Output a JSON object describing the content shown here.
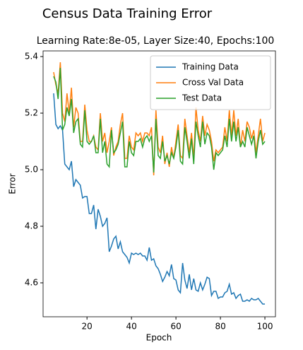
{
  "chart_data": {
    "type": "line",
    "title": "Census Data Training Error",
    "subtitle": "Learning Rate:8e-05, Layer Size:40, Epochs:100",
    "x_label": "Epoch",
    "y_label": "Error",
    "x": [
      5,
      6,
      7,
      8,
      9,
      10,
      11,
      12,
      13,
      14,
      15,
      16,
      17,
      18,
      19,
      20,
      21,
      22,
      23,
      24,
      25,
      26,
      27,
      28,
      29,
      30,
      31,
      32,
      33,
      34,
      35,
      36,
      37,
      38,
      39,
      40,
      41,
      42,
      43,
      44,
      45,
      46,
      47,
      48,
      49,
      50,
      51,
      52,
      53,
      54,
      55,
      56,
      57,
      58,
      59,
      60,
      61,
      62,
      63,
      64,
      65,
      66,
      67,
      68,
      69,
      70,
      71,
      72,
      73,
      74,
      75,
      76,
      77,
      78,
      79,
      80,
      81,
      82,
      83,
      84,
      85,
      86,
      87,
      88,
      89,
      90,
      91,
      92,
      93,
      94,
      95,
      96,
      97,
      98,
      99,
      100
    ],
    "series": [
      {
        "name": "Training Data",
        "color": "#1f77b4",
        "values": [
          5.27,
          5.16,
          5.145,
          5.155,
          5.14,
          5.02,
          5.01,
          5.0,
          5.03,
          4.94,
          4.965,
          4.955,
          4.945,
          4.9,
          4.905,
          4.905,
          4.845,
          4.845,
          4.875,
          4.79,
          4.86,
          4.835,
          4.8,
          4.81,
          4.83,
          4.71,
          4.73,
          4.755,
          4.765,
          4.72,
          4.745,
          4.71,
          4.7,
          4.69,
          4.67,
          4.705,
          4.7,
          4.705,
          4.7,
          4.705,
          4.695,
          4.695,
          4.68,
          4.725,
          4.68,
          4.685,
          4.66,
          4.65,
          4.63,
          4.605,
          4.62,
          4.64,
          4.625,
          4.665,
          4.615,
          4.61,
          4.575,
          4.565,
          4.67,
          4.61,
          4.58,
          4.63,
          4.575,
          4.615,
          4.575,
          4.57,
          4.6,
          4.575,
          4.595,
          4.62,
          4.615,
          4.555,
          4.57,
          4.57,
          4.545,
          4.55,
          4.55,
          4.565,
          4.57,
          4.595,
          4.56,
          4.565,
          4.545,
          4.555,
          4.56,
          4.535,
          4.535,
          4.54,
          4.535,
          4.545,
          4.54,
          4.54,
          4.545,
          4.535,
          4.525,
          4.525
        ]
      },
      {
        "name": "Cross Val Data",
        "color": "#ff7f0e",
        "values": [
          5.345,
          5.3,
          5.27,
          5.38,
          5.2,
          5.17,
          5.27,
          5.2,
          5.29,
          5.15,
          5.22,
          5.2,
          5.1,
          5.1,
          5.23,
          5.14,
          5.1,
          5.1,
          5.12,
          5.08,
          5.07,
          5.2,
          5.1,
          5.13,
          5.06,
          5.1,
          5.15,
          5.05,
          5.08,
          5.1,
          5.16,
          5.2,
          5.04,
          5.04,
          5.12,
          5.08,
          5.07,
          5.13,
          5.12,
          5.13,
          5.1,
          5.13,
          5.13,
          5.12,
          5.15,
          4.98,
          5.21,
          5.08,
          5.06,
          5.12,
          5.02,
          5.06,
          5.01,
          5.08,
          5.04,
          5.1,
          5.16,
          5.05,
          5.04,
          5.18,
          5.12,
          5.06,
          5.13,
          5.04,
          5.22,
          5.14,
          5.1,
          5.19,
          5.12,
          5.16,
          5.14,
          5.1,
          5.03,
          5.07,
          5.06,
          5.07,
          5.08,
          5.15,
          5.1,
          5.21,
          5.12,
          5.21,
          5.12,
          5.18,
          5.08,
          5.14,
          5.1,
          5.17,
          5.15,
          5.11,
          5.14,
          5.06,
          5.12,
          5.18,
          5.1,
          5.13
        ]
      },
      {
        "name": "Test Data",
        "color": "#2ca02c",
        "values": [
          5.33,
          5.31,
          5.25,
          5.36,
          5.14,
          5.16,
          5.22,
          5.19,
          5.25,
          5.13,
          5.17,
          5.18,
          5.09,
          5.08,
          5.21,
          5.1,
          5.09,
          5.1,
          5.12,
          5.06,
          5.06,
          5.18,
          5.06,
          5.1,
          5.02,
          5.01,
          5.14,
          5.06,
          5.07,
          5.09,
          5.13,
          5.17,
          5.01,
          5.01,
          5.1,
          5.06,
          5.05,
          5.1,
          5.1,
          5.11,
          5.08,
          5.11,
          5.12,
          5.1,
          5.12,
          4.99,
          5.18,
          5.05,
          5.04,
          5.1,
          5.03,
          5.05,
          5.02,
          5.06,
          5.04,
          5.08,
          5.14,
          5.03,
          5.02,
          5.15,
          5.1,
          5.04,
          5.11,
          5.02,
          5.17,
          5.12,
          5.08,
          5.17,
          5.09,
          5.13,
          5.12,
          5.08,
          5.0,
          5.06,
          5.05,
          5.06,
          5.07,
          5.12,
          5.08,
          5.18,
          5.1,
          5.17,
          5.1,
          5.15,
          5.08,
          5.1,
          5.08,
          5.15,
          5.12,
          5.09,
          5.12,
          5.04,
          5.1,
          5.14,
          5.09,
          5.1
        ]
      }
    ],
    "xlim": [
      0.25,
      104.75
    ],
    "xticks": [
      20,
      40,
      60,
      80,
      100
    ],
    "ylim": [
      4.48,
      5.42
    ],
    "yticks": [
      4.6,
      4.8,
      {
        "value": 5,
        "label": "5.0"
      },
      5.2,
      5.4
    ],
    "legend": "upper right",
    "grid": false
  }
}
